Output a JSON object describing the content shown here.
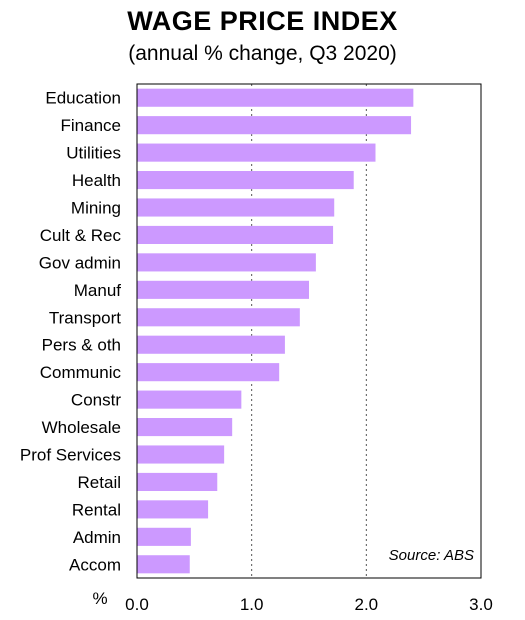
{
  "header": {
    "title": "WAGE PRICE INDEX",
    "subtitle": "(annual % change, Q3 2020)"
  },
  "chart_data": {
    "type": "bar",
    "orientation": "horizontal",
    "title": "WAGE PRICE INDEX",
    "subtitle": "(annual % change, Q3 2020)",
    "xlabel": "%",
    "ylabel": "",
    "categories": [
      "Education",
      "Finance",
      "Utilities",
      "Health",
      "Mining",
      "Cult & Rec",
      "Gov admin",
      "Manuf",
      "Transport",
      "Pers & oth",
      "Communic",
      "Constr",
      "Wholesale",
      "Prof Services",
      "Retail",
      "Rental",
      "Admin",
      "Accom"
    ],
    "values": [
      2.41,
      2.39,
      2.08,
      1.89,
      1.72,
      1.71,
      1.56,
      1.5,
      1.42,
      1.29,
      1.24,
      0.91,
      0.83,
      0.76,
      0.7,
      0.62,
      0.47,
      0.46
    ],
    "xlim": [
      0,
      3
    ],
    "xticks": [
      "0.0",
      "1.0",
      "2.0",
      "3.0"
    ],
    "xtick_values": [
      0,
      1,
      2,
      3
    ],
    "grid": "vertical dotted at 1.0 and 2.0",
    "bar_color": "#cc99ff",
    "annotation": "Source: ABS"
  }
}
